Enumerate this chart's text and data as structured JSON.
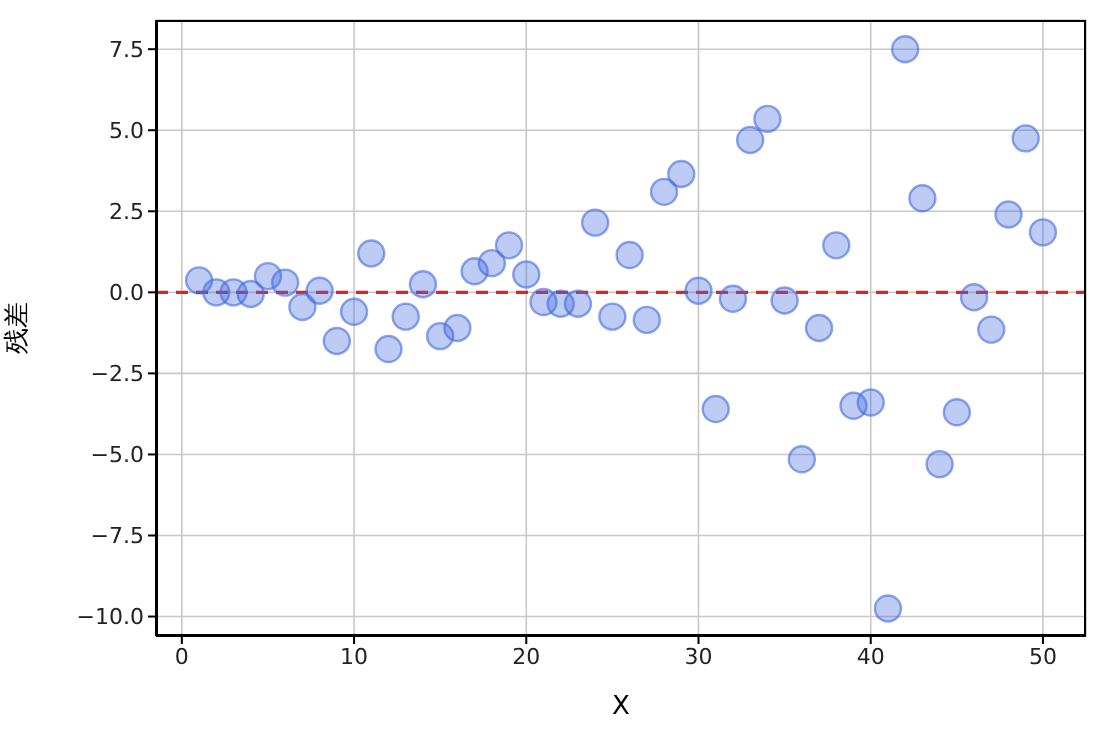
{
  "chart_data": {
    "type": "scatter",
    "xlabel": "X",
    "ylabel": "残差",
    "x": [
      1,
      2,
      3,
      4,
      5,
      6,
      7,
      8,
      9,
      10,
      11,
      12,
      13,
      14,
      15,
      16,
      17,
      18,
      19,
      20,
      21,
      22,
      23,
      24,
      25,
      26,
      27,
      28,
      29,
      30,
      31,
      32,
      33,
      34,
      35,
      36,
      37,
      38,
      39,
      40,
      41,
      42,
      43,
      44,
      45,
      46,
      47,
      48,
      49,
      50
    ],
    "values": [
      0.37,
      0.0,
      0.0,
      -0.05,
      0.5,
      0.3,
      -0.45,
      0.05,
      -1.5,
      -0.6,
      1.2,
      -1.75,
      -0.75,
      0.25,
      -1.35,
      -1.1,
      0.65,
      0.9,
      1.45,
      0.55,
      -0.3,
      -0.35,
      -0.35,
      2.15,
      -0.75,
      1.15,
      -0.85,
      3.1,
      3.65,
      0.05,
      -3.6,
      -0.2,
      4.7,
      5.35,
      -0.25,
      -5.15,
      -1.1,
      1.45,
      -3.5,
      -3.4,
      -9.75,
      7.5,
      2.9,
      -5.3,
      -3.7,
      -0.15,
      -1.15,
      2.4,
      4.75,
      1.85
    ],
    "color": "#4169e1",
    "marker": "circle",
    "grid": true,
    "xlim": [
      -1.5,
      52.5
    ],
    "xticks": [
      0,
      10,
      20,
      30,
      40,
      50
    ],
    "ylim": [
      -10.6,
      8.4
    ],
    "yticks": [
      {
        "value": -10,
        "label": "−10.0"
      },
      {
        "value": -7.5,
        "label": "−7.5"
      },
      {
        "value": -5,
        "label": "−5.0"
      },
      {
        "value": -2.5,
        "label": "−2.5"
      },
      {
        "value": 0,
        "label": "0.0"
      },
      {
        "value": 2.5,
        "label": "2.5"
      },
      {
        "value": 5,
        "label": "5.0"
      },
      {
        "value": 7.5,
        "label": "7.5"
      }
    ],
    "ref_lines": [
      {
        "axis": "y",
        "value": 0,
        "color": "#d62728",
        "line_style": "dashed"
      }
    ]
  }
}
